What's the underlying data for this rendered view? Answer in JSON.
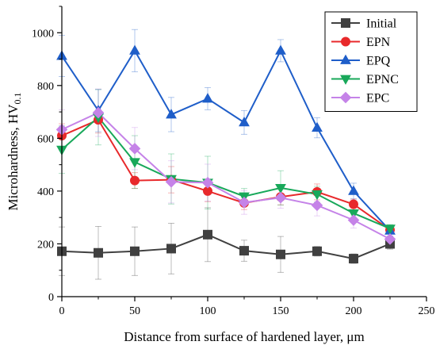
{
  "chart_data": {
    "type": "line",
    "xlabel": "Distance from surface of hardened layer, μm",
    "ylabel": "Microhardness, HV",
    "ylabel_sub": "0.1",
    "xlim": [
      0,
      250
    ],
    "ylim": [
      0,
      1100
    ],
    "xticks": [
      0,
      50,
      100,
      150,
      200,
      250
    ],
    "yticks": [
      0,
      200,
      400,
      600,
      800,
      1000
    ],
    "grid": false,
    "legend_position": "top-right",
    "x": [
      0,
      25,
      50,
      75,
      100,
      125,
      150,
      175,
      200,
      225
    ],
    "series": [
      {
        "name": "Initial",
        "color": "#404040",
        "marker": "square",
        "values": [
          172,
          166,
          172,
          182,
          235,
          174,
          160,
          172,
          144,
          200
        ],
        "errors": [
          92,
          100,
          92,
          96,
          102,
          40,
          68,
          18,
          18,
          20
        ]
      },
      {
        "name": "EPN",
        "color": "#e8292b",
        "marker": "circle",
        "values": [
          610,
          670,
          440,
          443,
          400,
          355,
          378,
          397,
          350,
          253
        ],
        "errors": [
          45,
          50,
          30,
          50,
          40,
          25,
          30,
          30,
          20,
          15
        ]
      },
      {
        "name": "EPQ",
        "color": "#1f5ec9",
        "marker": "triangle-up",
        "values": [
          912,
          705,
          932,
          690,
          750,
          660,
          932,
          640,
          400,
          250
        ],
        "errors": [
          78,
          80,
          80,
          65,
          42,
          45,
          42,
          38,
          30,
          20
        ]
      },
      {
        "name": "EPNC",
        "color": "#18a85a",
        "marker": "triangle-down",
        "values": [
          557,
          680,
          510,
          446,
          432,
          380,
          412,
          388,
          316,
          258
        ],
        "errors": [
          90,
          105,
          100,
          95,
          100,
          30,
          65,
          30,
          30,
          15
        ]
      },
      {
        "name": "EPC",
        "color": "#c583e8",
        "marker": "diamond",
        "values": [
          633,
          697,
          561,
          435,
          432,
          357,
          375,
          346,
          290,
          218
        ],
        "errors": [
          75,
          90,
          80,
          80,
          70,
          45,
          40,
          40,
          30,
          20
        ]
      }
    ]
  }
}
